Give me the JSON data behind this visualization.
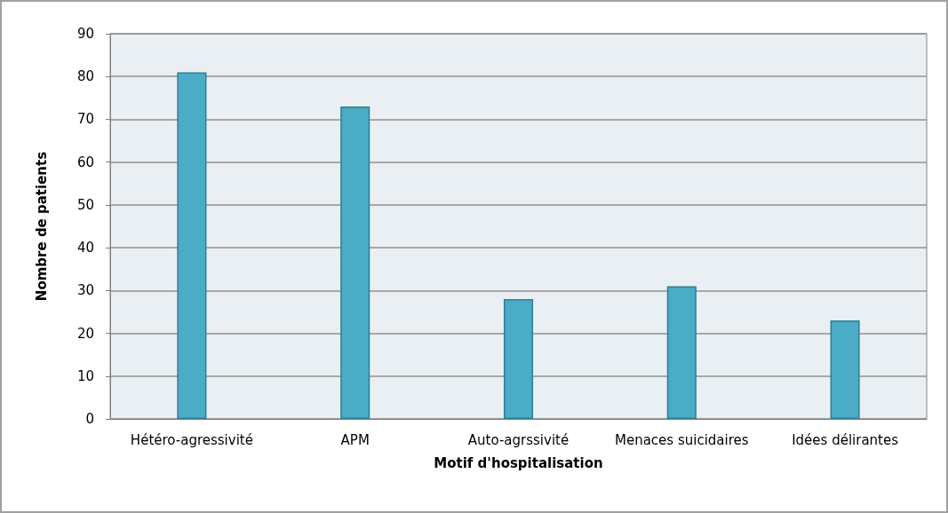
{
  "chart_data": {
    "type": "bar",
    "xlabel": "Motif d'hospitalisation",
    "ylabel": "Nombre de patients",
    "categories": [
      "Hétéro-agressivité",
      "APM",
      "Auto-agrssivité",
      "Menaces suicidaires",
      "Idées délirantes"
    ],
    "values": [
      81,
      73,
      28,
      31,
      23
    ],
    "color": "#4bacc6",
    "ylim": [
      0,
      90
    ],
    "yticks": [
      0,
      10,
      20,
      30,
      40,
      50,
      60,
      70,
      80,
      90
    ],
    "grid": "y"
  }
}
